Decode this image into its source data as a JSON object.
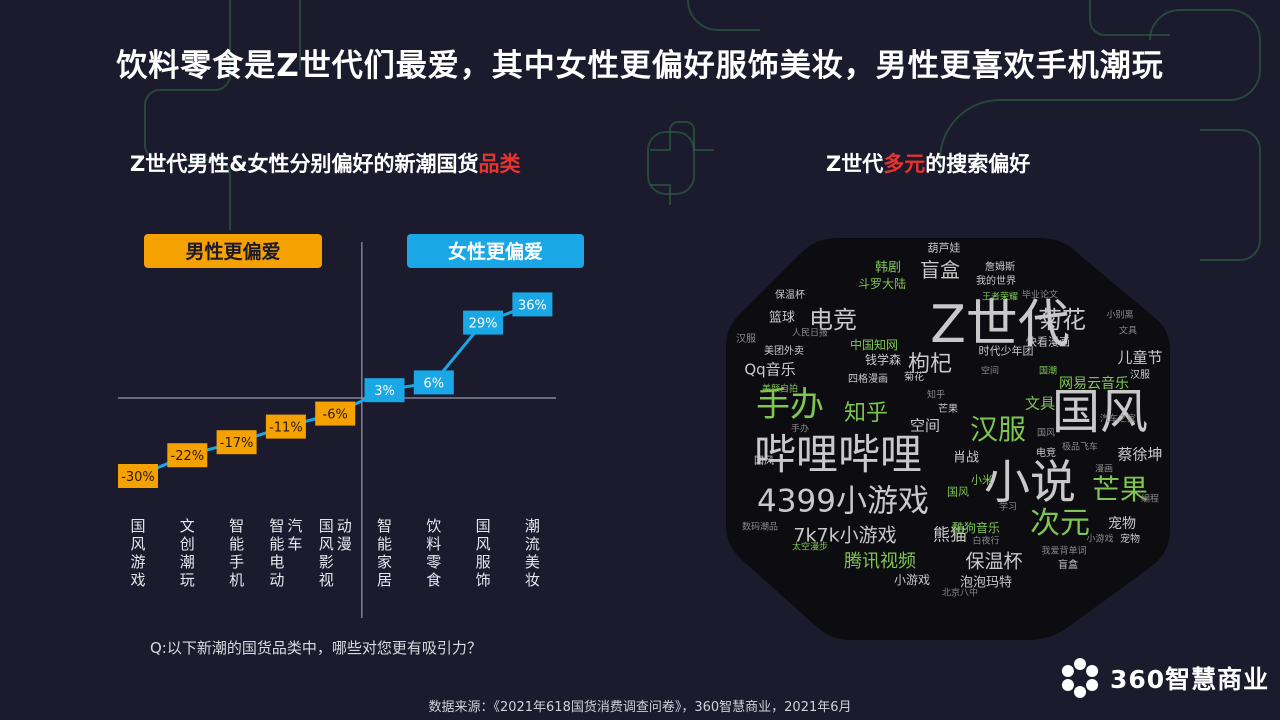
{
  "title": "饮料零食是Z世代们最爱，其中女性更偏好服饰美妆，男性更喜欢手机潮玩",
  "left_subtitle": {
    "prefix": "Z世代男性&女性分别偏好的新潮国货",
    "highlight": "品类"
  },
  "right_subtitle": {
    "prefix": "Z世代",
    "highlight": "多元",
    "suffix": "的搜索偏好"
  },
  "chart_data": {
    "type": "line",
    "groups": {
      "male": "男性更偏爱",
      "female": "女性更偏爱"
    },
    "categories": [
      "国风游戏",
      "文创潮玩",
      "智能手机",
      "智能电动汽车",
      "国风影视动漫",
      "智能家居",
      "饮料零食",
      "国风服饰",
      "潮流美妆"
    ],
    "values": [
      -30,
      -22,
      -17,
      -11,
      -6,
      3,
      6,
      29,
      36
    ],
    "labels": [
      "-30%",
      "-22%",
      "-17%",
      "-11%",
      "-6%",
      "3%",
      "6%",
      "29%",
      "36%"
    ],
    "ylim": [
      -35,
      40
    ],
    "colors": {
      "negative": "#f5a100",
      "positive": "#1aa7e6",
      "line": "#1aa7e6"
    }
  },
  "question": "Q:以下新潮的国货品类中，哪些对您更有吸引力？",
  "source": "数据来源：《2021年618国货消费调查问卷》，360智慧商业，2021年6月",
  "logo": {
    "text": "360智慧商业",
    "icon": "flower-logo-icon"
  },
  "word_cloud": [
    [
      "Z世代",
      1000,
      325,
      52,
      "s"
    ],
    [
      "国风",
      1100,
      412,
      48,
      "s"
    ],
    [
      "小说",
      1030,
      482,
      46,
      "s"
    ],
    [
      "哔哩哔哩",
      838,
      455,
      42,
      "s"
    ],
    [
      "4399小游戏",
      843,
      502,
      31,
      "s"
    ],
    [
      "手办",
      790,
      405,
      34,
      "g"
    ],
    [
      "汉服",
      998,
      430,
      28,
      "g"
    ],
    [
      "芒果",
      1120,
      490,
      28,
      "g"
    ],
    [
      "次元",
      1060,
      524,
      30,
      "g"
    ],
    [
      "菊花",
      1062,
      320,
      24,
      "s"
    ],
    [
      "电竞",
      833,
      320,
      24,
      "s"
    ],
    [
      "枸杞",
      930,
      365,
      22,
      "s"
    ],
    [
      "知乎",
      866,
      414,
      22,
      "g"
    ],
    [
      "盲盒",
      940,
      270,
      20,
      "s"
    ],
    [
      "7k7k小游戏",
      845,
      536,
      19,
      "s"
    ],
    [
      "腾讯视频",
      880,
      562,
      18,
      "g"
    ],
    [
      "保温杯",
      994,
      562,
      19,
      "s"
    ],
    [
      "熊猫",
      950,
      536,
      17,
      "s"
    ],
    [
      "空间",
      925,
      426,
      15,
      "s"
    ],
    [
      "网易云音乐",
      1094,
      384,
      14,
      "g"
    ],
    [
      "蔡徐坤",
      1140,
      455,
      15,
      "s"
    ],
    [
      "宠物",
      1122,
      524,
      14,
      "s"
    ],
    [
      "儿童节",
      1140,
      358,
      15,
      "s"
    ],
    [
      "Qq音乐",
      770,
      370,
      15,
      "s"
    ],
    [
      "文具",
      1040,
      404,
      15,
      "g"
    ],
    [
      "篮球",
      782,
      318,
      13,
      "s"
    ],
    [
      "韩剧",
      888,
      268,
      13,
      "g"
    ],
    [
      "斗罗大陆",
      882,
      284,
      12,
      "g"
    ],
    [
      "时代少年团",
      1006,
      351,
      11,
      "s"
    ],
    [
      "钱学森",
      883,
      360,
      12,
      "s"
    ],
    [
      "快看漫画",
      1048,
      342,
      11,
      "s"
    ],
    [
      "中国知网",
      874,
      345,
      12,
      "g"
    ],
    [
      "泡泡玛特",
      986,
      583,
      13,
      "s"
    ],
    [
      "酷狗音乐",
      976,
      528,
      12,
      "g"
    ],
    [
      "肖战",
      966,
      458,
      13,
      "s"
    ],
    [
      "小游戏",
      912,
      580,
      12,
      "s"
    ],
    [
      "葫芦娃",
      944,
      248,
      11,
      "s"
    ],
    [
      "詹姆斯",
      1000,
      268,
      10,
      "s"
    ],
    [
      "我的世界",
      996,
      282,
      10,
      "s"
    ],
    [
      "汉服",
      1140,
      376,
      10,
      "s"
    ],
    [
      "美团外卖",
      784,
      352,
      10,
      "s"
    ],
    [
      "保温杯",
      790,
      296,
      10,
      "s"
    ],
    [
      "小米",
      982,
      480,
      11,
      "g"
    ],
    [
      "四格漫画",
      868,
      380,
      10,
      "s"
    ],
    [
      "美颜自拍",
      780,
      390,
      9,
      "g"
    ],
    [
      "国风",
      764,
      462,
      10,
      "s"
    ],
    [
      "芒果",
      948,
      410,
      10,
      "s"
    ],
    [
      "电竞",
      1046,
      454,
      10,
      "s"
    ],
    [
      "盲盒",
      1068,
      566,
      10,
      "s"
    ],
    [
      "宠物",
      1130,
      540,
      10,
      "s"
    ],
    [
      "太空漫步",
      810,
      548,
      9,
      "g"
    ],
    [
      "数码潮品",
      760,
      528,
      9,
      "d"
    ],
    [
      "极品飞车",
      1080,
      448,
      9,
      "d"
    ],
    [
      "汽车之家",
      1118,
      420,
      9,
      "d"
    ],
    [
      "国潮",
      1048,
      372,
      9,
      "g"
    ],
    [
      "王者荣耀",
      1000,
      298,
      9,
      "g"
    ],
    [
      "毕业论文",
      1040,
      296,
      9,
      "d"
    ],
    [
      "小别离",
      1120,
      316,
      9,
      "d"
    ],
    [
      "汉服",
      746,
      340,
      10,
      "d"
    ],
    [
      "人民日报",
      810,
      334,
      9,
      "d"
    ],
    [
      "空间",
      990,
      372,
      9,
      "d"
    ],
    [
      "菊花",
      914,
      378,
      10,
      "s"
    ],
    [
      "北京八中",
      960,
      594,
      9,
      "d"
    ],
    [
      "我爱背单词",
      1064,
      552,
      9,
      "d"
    ],
    [
      "白夜行",
      986,
      542,
      9,
      "d"
    ],
    [
      "漫画",
      1104,
      470,
      9,
      "d"
    ],
    [
      "国风",
      958,
      492,
      11,
      "g"
    ],
    [
      "小游戏",
      1100,
      540,
      9,
      "d"
    ],
    [
      "手办",
      800,
      430,
      9,
      "d"
    ],
    [
      "国风",
      1046,
      434,
      9,
      "d"
    ],
    [
      "文具",
      1128,
      332,
      9,
      "d"
    ],
    [
      "知乎",
      936,
      396,
      9,
      "d"
    ],
    [
      "学习",
      1008,
      508,
      9,
      "d"
    ],
    [
      "编程",
      1150,
      500,
      9,
      "d"
    ]
  ]
}
